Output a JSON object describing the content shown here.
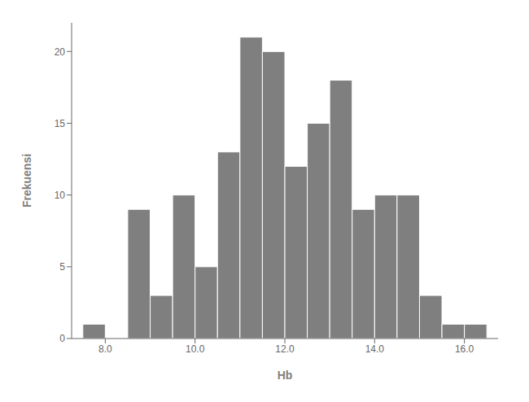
{
  "chart_data": {
    "type": "histogram",
    "bins": [
      7.5,
      8.0,
      8.5,
      9.0,
      9.5,
      10.0,
      10.5,
      11.0,
      11.5,
      12.0,
      12.5,
      13.0,
      13.5,
      14.0,
      14.5,
      15.0,
      15.5,
      16.0,
      16.5
    ],
    "values": [
      1,
      0,
      9,
      3,
      10,
      5,
      13,
      21,
      20,
      12,
      15,
      18,
      9,
      10,
      10,
      3,
      1,
      1
    ],
    "color": "#7f7f7f",
    "xlim": [
      7.25,
      16.75
    ],
    "ylim": [
      0,
      22
    ],
    "xticks": [
      {
        "value": 8.0,
        "label": "8.0"
      },
      {
        "value": 10.0,
        "label": "10.0"
      },
      {
        "value": 12.0,
        "label": "12.0"
      },
      {
        "value": 14.0,
        "label": "14.0"
      },
      {
        "value": 16.0,
        "label": "16.0"
      }
    ],
    "yticks": [
      0,
      5,
      10,
      15,
      20
    ],
    "xlabel": "Hb",
    "ylabel": "Frekuensi"
  }
}
